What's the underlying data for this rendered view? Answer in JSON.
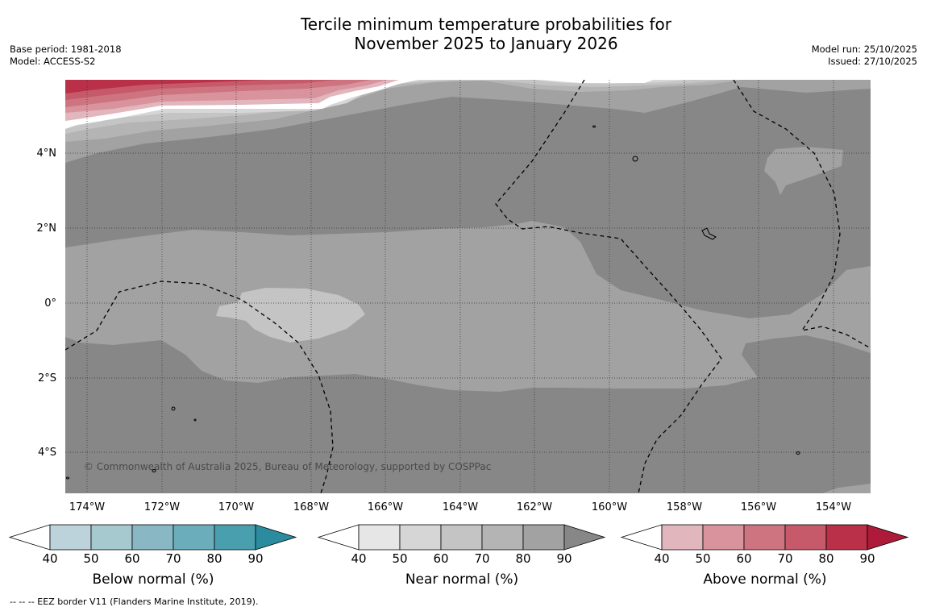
{
  "title": {
    "line1": "Tercile minimum temperature probabilities for",
    "line2": "November 2025 to January 2026"
  },
  "meta": {
    "base_period": "Base period: 1981-2018",
    "model": "Model: ACCESS-S2",
    "model_run": "Model run: 25/10/2025",
    "issued": "Issued: 27/10/2025"
  },
  "map": {
    "lat_labels": [
      "4°N",
      "2°N",
      "0°",
      "2°S",
      "4°S"
    ],
    "lon_labels": [
      "174°W",
      "172°W",
      "170°W",
      "168°W",
      "166°W",
      "164°W",
      "162°W",
      "160°W",
      "158°W",
      "156°W",
      "154°W"
    ],
    "copyright": "© Commonwealth of Australia 2025, Bureau of Meteorology, supported by COSPPac"
  },
  "colorbars": [
    {
      "title": "Below normal (%)",
      "ticks": [
        "40",
        "50",
        "60",
        "70",
        "80",
        "90"
      ],
      "colors": [
        "#ffffff",
        "#bcd3db",
        "#a6c8cf",
        "#89b8c4",
        "#6badba",
        "#4a9fae",
        "#2b8c9f"
      ]
    },
    {
      "title": "Near normal (%)",
      "ticks": [
        "40",
        "50",
        "60",
        "70",
        "80",
        "90"
      ],
      "colors": [
        "#ffffff",
        "#e6e6e6",
        "#d6d6d6",
        "#c4c4c4",
        "#b4b4b4",
        "#a2a2a2",
        "#878787"
      ]
    },
    {
      "title": "Above normal (%)",
      "ticks": [
        "40",
        "50",
        "60",
        "70",
        "80",
        "90"
      ],
      "colors": [
        "#ffffff",
        "#e1b6bc",
        "#d8939d",
        "#cd7480",
        "#c65a6a",
        "#b93048",
        "#ad1a3a"
      ]
    }
  ],
  "footer": "--  --  -- EEZ border V11 (Flanders Marine Institute, 2019)."
}
